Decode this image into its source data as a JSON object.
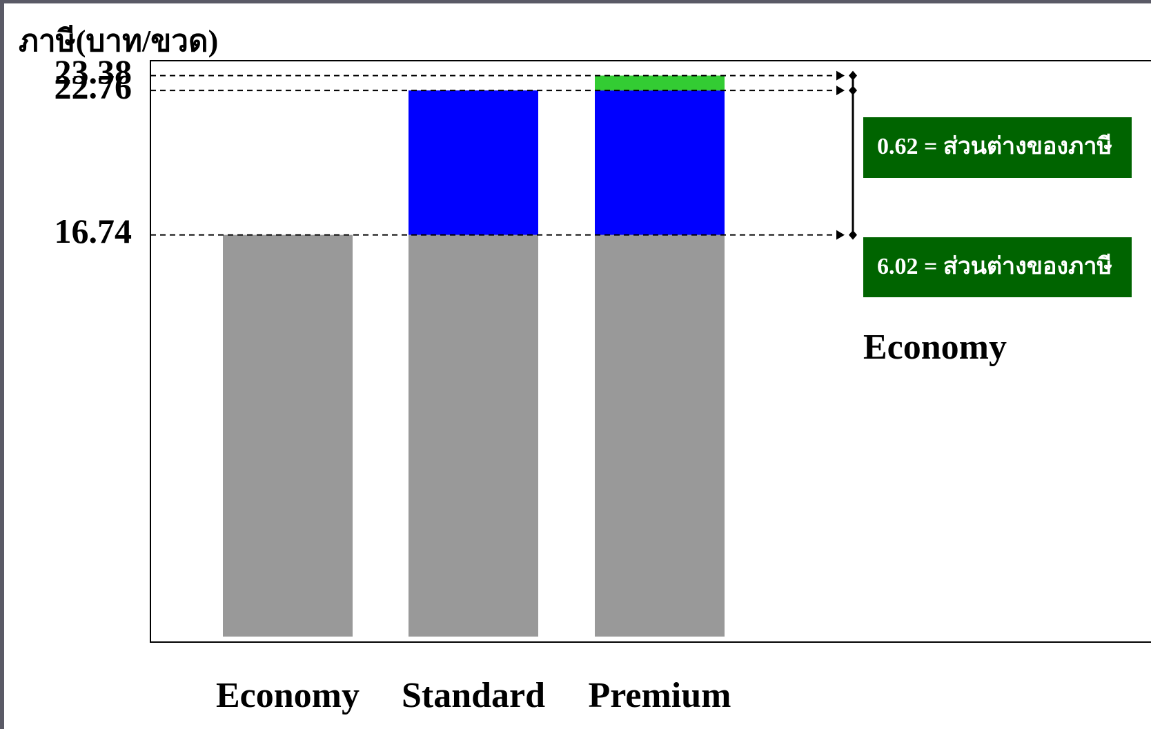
{
  "chart_data": {
    "type": "stacked_bar",
    "y_label": "ภาษี(บาท/ขวด)",
    "categories": [
      "Economy",
      "Standard",
      "Premium"
    ],
    "series": [
      {
        "color": "#999999",
        "values": [
          16.74,
          16.74,
          16.74
        ]
      },
      {
        "color": "#0000ff",
        "values": [
          null,
          6.02,
          6.02
        ]
      },
      {
        "color": "#33cc33",
        "values": [
          null,
          null,
          0.62
        ]
      }
    ],
    "ylim": [
      0,
      24
    ],
    "yticks": [
      16.74,
      22.76,
      23.38
    ],
    "annotations": [
      "0.62 = ส่วนต่างของภาษี",
      "6.02  =  ส่วนต่างของภาษี",
      "Economy"
    ],
    "annotation_color": "#006400"
  }
}
